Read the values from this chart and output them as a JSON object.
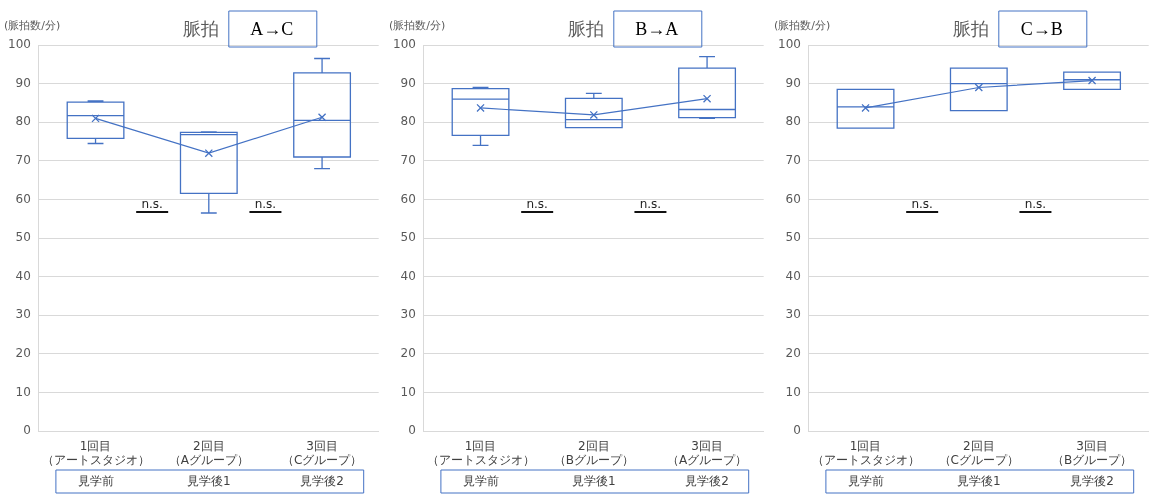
{
  "chart_data": [
    {
      "type": "box",
      "title": "脈拍",
      "subtitle": "A→C",
      "ylabel": "(脈拍数/分)",
      "categories": [
        "1回目（アートスタジオ）",
        "2回目（Aグループ）",
        "3回目（Cグループ）"
      ],
      "series": [
        {
          "type": "box",
          "color": "#4472c4",
          "boxes": [
            {
              "low": 74.5,
              "q1": 75.8,
              "median": 81.7,
              "q3": 85.2,
              "high": 85.5
            },
            {
              "low": 56.5,
              "q1": 61.6,
              "median": 76.8,
              "q3": 77.4,
              "high": 77.5
            },
            {
              "low": 68,
              "q1": 71,
              "median": 80.5,
              "q3": 92.8,
              "high": 96.5
            }
          ]
        },
        {
          "type": "line",
          "color": "#4472c4",
          "marker": "cross",
          "values": [
            81,
            72,
            81.3
          ]
        }
      ],
      "ylim": [
        0,
        100
      ],
      "yticks": [
        0,
        10,
        20,
        30,
        40,
        50,
        60,
        70,
        80,
        90,
        100
      ],
      "grid": "y",
      "annotations": [
        "n.s.",
        "n.s.",
        "見学前",
        "見学後1",
        "見学後2"
      ]
    },
    {
      "type": "box",
      "title": "脈拍",
      "subtitle": "B→A",
      "ylabel": "(脈拍数/分)",
      "categories": [
        "1回目（アートスタジオ）",
        "2回目（Bグループ）",
        "3回目（Aグループ）"
      ],
      "series": [
        {
          "type": "box",
          "color": "#4472c4",
          "boxes": [
            {
              "low": 74,
              "q1": 76.6,
              "median": 86,
              "q3": 88.7,
              "high": 89
            },
            {
              "low": 78.6,
              "q1": 78.6,
              "median": 80.7,
              "q3": 86.2,
              "high": 87.5
            },
            {
              "low": 81,
              "q1": 81.2,
              "median": 83.3,
              "q3": 94,
              "high": 97
            }
          ]
        },
        {
          "type": "line",
          "color": "#4472c4",
          "marker": "cross",
          "values": [
            83.7,
            81.9,
            86.1
          ]
        }
      ],
      "ylim": [
        0,
        100
      ],
      "yticks": [
        0,
        10,
        20,
        30,
        40,
        50,
        60,
        70,
        80,
        90,
        100
      ],
      "grid": "y",
      "annotations": [
        "n.s.",
        "n.s.",
        "見学前",
        "見学後1",
        "見学後2"
      ]
    },
    {
      "type": "box",
      "title": "脈拍",
      "subtitle": "C→B",
      "ylabel": "(脈拍数/分)",
      "categories": [
        "1回目（アートスタジオ）",
        "2回目（Cグループ）",
        "3回目（Bグループ）"
      ],
      "series": [
        {
          "type": "box",
          "color": "#4472c4",
          "boxes": [
            {
              "low": 78.5,
              "q1": 78.5,
              "median": 84,
              "q3": 88.5,
              "high": 88.5
            },
            {
              "low": 83,
              "q1": 83,
              "median": 90,
              "q3": 94,
              "high": 94
            },
            {
              "low": 88.5,
              "q1": 88.5,
              "median": 91,
              "q3": 93,
              "high": 93
            }
          ]
        },
        {
          "type": "line",
          "color": "#4472c4",
          "marker": "cross",
          "values": [
            83.7,
            89,
            90.8
          ]
        }
      ],
      "ylim": [
        0,
        100
      ],
      "yticks": [
        0,
        10,
        20,
        30,
        40,
        50,
        60,
        70,
        80,
        90,
        100
      ],
      "grid": "y",
      "annotations": [
        "n.s.",
        "n.s.",
        "見学前",
        "見学後1",
        "見学後2"
      ]
    }
  ]
}
